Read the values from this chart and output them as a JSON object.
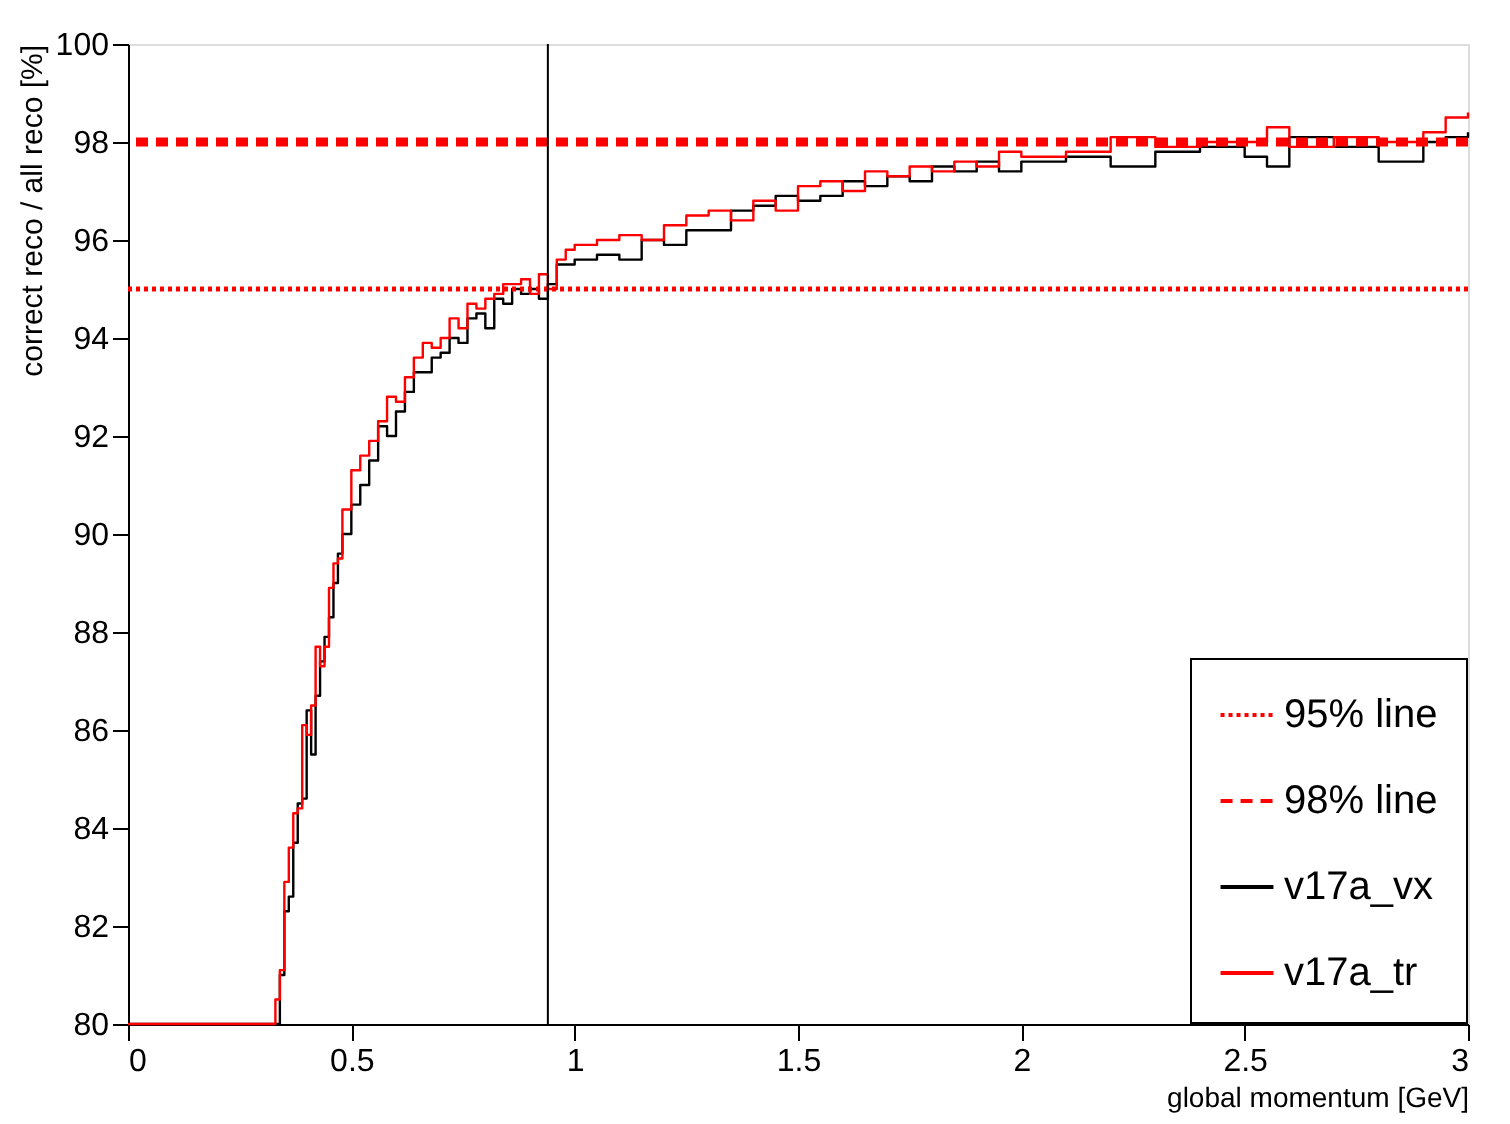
{
  "chart_data": {
    "type": "step",
    "xlabel": "global momentum [GeV]",
    "ylabel": "correct reco / all reco [%]",
    "x": [
      0,
      0.33,
      0.34,
      0.35,
      0.36,
      0.37,
      0.38,
      0.39,
      0.4,
      0.41,
      0.42,
      0.43,
      0.44,
      0.45,
      0.46,
      0.47,
      0.48,
      0.5,
      0.52,
      0.54,
      0.56,
      0.58,
      0.6,
      0.62,
      0.64,
      0.66,
      0.68,
      0.7,
      0.72,
      0.74,
      0.76,
      0.78,
      0.8,
      0.82,
      0.84,
      0.86,
      0.88,
      0.9,
      0.92,
      0.94,
      0.96,
      0.98,
      1.0,
      1.05,
      1.1,
      1.15,
      1.2,
      1.25,
      1.3,
      1.35,
      1.4,
      1.45,
      1.5,
      1.55,
      1.6,
      1.65,
      1.7,
      1.75,
      1.8,
      1.85,
      1.9,
      1.95,
      2.0,
      2.1,
      2.2,
      2.3,
      2.4,
      2.5,
      2.55,
      2.6,
      2.7,
      2.8,
      2.9,
      2.95,
      3.0
    ],
    "series": [
      {
        "name": "v17a_vx",
        "color": "#000000",
        "values": [
          80,
          80,
          81,
          82.3,
          82.6,
          83.7,
          84.5,
          84.6,
          86.4,
          85.5,
          86.7,
          87.4,
          87.9,
          88.3,
          89.0,
          89.6,
          90.0,
          90.6,
          91.0,
          91.5,
          92.2,
          92.0,
          92.5,
          92.9,
          93.3,
          93.3,
          93.6,
          93.7,
          94.0,
          93.9,
          94.4,
          94.5,
          94.2,
          94.8,
          94.7,
          95.0,
          94.9,
          95.0,
          94.8,
          95.1,
          95.5,
          95.5,
          95.6,
          95.7,
          95.6,
          96.0,
          95.9,
          96.2,
          96.2,
          96.6,
          96.7,
          96.9,
          96.8,
          96.9,
          97.2,
          97.1,
          97.3,
          97.2,
          97.5,
          97.4,
          97.6,
          97.4,
          97.6,
          97.7,
          97.5,
          97.8,
          97.9,
          97.7,
          97.5,
          98.1,
          97.9,
          97.6,
          98.0,
          98.1,
          98.2
        ]
      },
      {
        "name": "v17a_tr",
        "color": "#ff0000",
        "values": [
          80,
          80.5,
          81.1,
          82.9,
          83.6,
          84.3,
          84.4,
          86.1,
          85.9,
          86.5,
          87.7,
          87.3,
          87.7,
          88.9,
          89.4,
          89.5,
          90.5,
          91.3,
          91.6,
          91.9,
          92.3,
          92.8,
          92.7,
          93.2,
          93.6,
          93.9,
          93.8,
          94.0,
          94.4,
          94.2,
          94.7,
          94.6,
          94.8,
          94.9,
          95.1,
          95.1,
          95.2,
          94.9,
          95.3,
          95.0,
          95.6,
          95.8,
          95.9,
          96.0,
          96.1,
          96.0,
          96.3,
          96.5,
          96.6,
          96.4,
          96.8,
          96.6,
          97.1,
          97.2,
          97.0,
          97.4,
          97.3,
          97.5,
          97.4,
          97.6,
          97.5,
          97.8,
          97.7,
          97.8,
          98.1,
          97.9,
          98.0,
          98.0,
          98.3,
          97.9,
          98.1,
          98.0,
          98.2,
          98.5,
          98.6
        ]
      }
    ],
    "line_style": "solid",
    "ref_lines": [
      {
        "axis": "y",
        "value": 95,
        "label": "95% line",
        "color": "#ff0000",
        "line_style": "dotted"
      },
      {
        "axis": "y",
        "value": 98,
        "label": "98% line",
        "color": "#ff0000",
        "line_style": "dashed"
      },
      {
        "axis": "x",
        "value": 0.94,
        "color": "#000000",
        "line_style": "solid"
      }
    ],
    "xlim": [
      0,
      3
    ],
    "xticks": [
      0,
      0.5,
      1,
      1.5,
      2,
      2.5,
      3
    ],
    "ylim": [
      80,
      100
    ],
    "yticks": [
      80,
      82,
      84,
      86,
      88,
      90,
      92,
      94,
      96,
      98,
      100
    ],
    "grid": false,
    "legend": "bottom right"
  }
}
